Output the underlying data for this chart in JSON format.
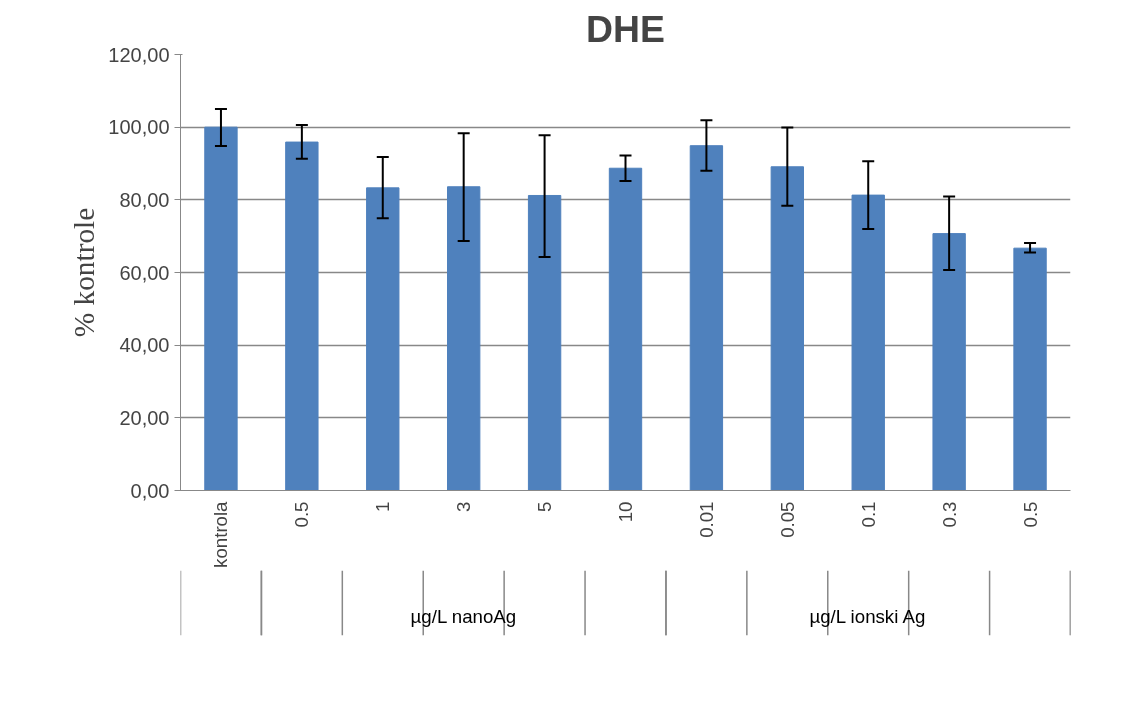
{
  "chart_data": {
    "type": "bar",
    "title": "DHE",
    "ylabel": "% kontrole",
    "categories": [
      "kontrola",
      "0.5",
      "1",
      "3",
      "5",
      "10",
      "0.01",
      "0.05",
      "0.1",
      "0.3",
      "0.5"
    ],
    "values": [
      100.0,
      95.9,
      83.3,
      83.6,
      81.2,
      88.7,
      94.9,
      89.1,
      81.3,
      70.7,
      66.7
    ],
    "errors": [
      [
        94.8,
        105.0
      ],
      [
        91.3,
        100.6
      ],
      [
        74.9,
        91.8
      ],
      [
        68.7,
        98.3
      ],
      [
        64.3,
        97.8
      ],
      [
        85.2,
        92.2
      ],
      [
        88.0,
        101.9
      ],
      [
        78.4,
        99.9
      ],
      [
        72.0,
        90.6
      ],
      [
        60.7,
        80.9
      ],
      [
        65.5,
        68.1
      ]
    ],
    "color": "#4f81bd",
    "ylim": [
      0,
      120
    ],
    "yticks": [
      {
        "value": 0,
        "label": "0,00"
      },
      {
        "value": 20,
        "label": "20,00"
      },
      {
        "value": 40,
        "label": "40,00"
      },
      {
        "value": 60,
        "label": "60,00"
      },
      {
        "value": 80,
        "label": "80,00"
      },
      {
        "value": 100,
        "label": "100,00"
      },
      {
        "value": 120,
        "label": "120,00"
      }
    ],
    "grid": "y",
    "annotations": [
      "µg/L nanoAg",
      "µg/L ionski Ag"
    ]
  }
}
